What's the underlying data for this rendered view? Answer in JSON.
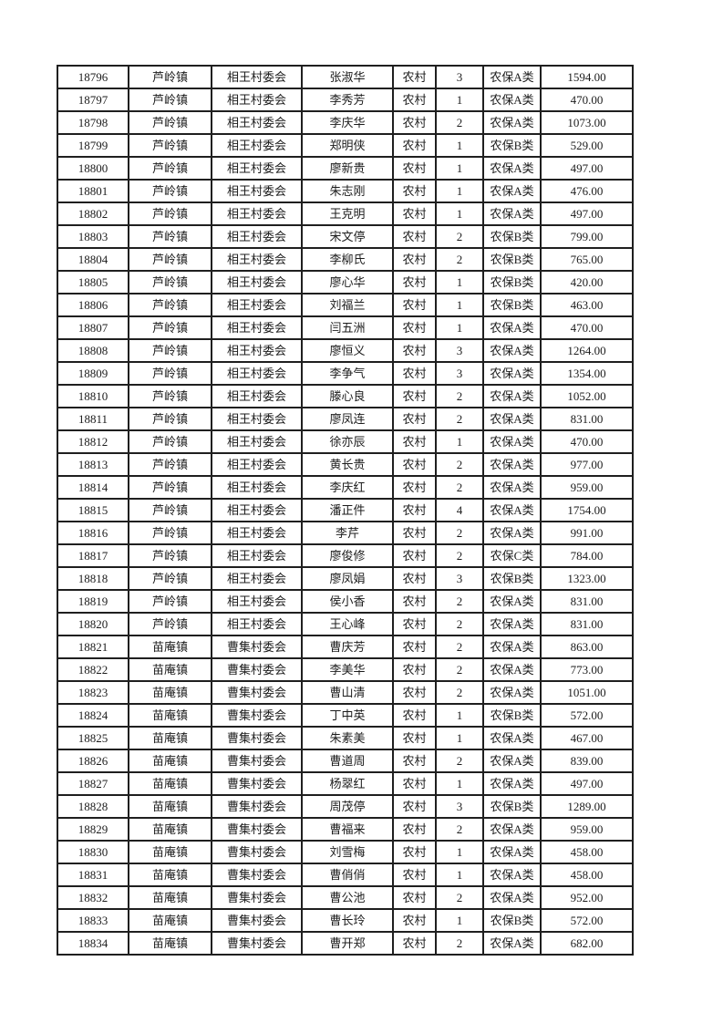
{
  "page": {
    "background_color": "#ffffff",
    "border_color": "#1f1f1f",
    "text_color": "#1c1c1c"
  },
  "table": {
    "rows": [
      [
        "18796",
        "芦岭镇",
        "相王村委会",
        "张淑华",
        "农村",
        "3",
        "农保A类",
        "1594.00"
      ],
      [
        "18797",
        "芦岭镇",
        "相王村委会",
        "李秀芳",
        "农村",
        "1",
        "农保A类",
        "470.00"
      ],
      [
        "18798",
        "芦岭镇",
        "相王村委会",
        "李庆华",
        "农村",
        "2",
        "农保A类",
        "1073.00"
      ],
      [
        "18799",
        "芦岭镇",
        "相王村委会",
        "郑明侠",
        "农村",
        "1",
        "农保B类",
        "529.00"
      ],
      [
        "18800",
        "芦岭镇",
        "相王村委会",
        "廖新贵",
        "农村",
        "1",
        "农保A类",
        "497.00"
      ],
      [
        "18801",
        "芦岭镇",
        "相王村委会",
        "朱志刚",
        "农村",
        "1",
        "农保A类",
        "476.00"
      ],
      [
        "18802",
        "芦岭镇",
        "相王村委会",
        "王克明",
        "农村",
        "1",
        "农保A类",
        "497.00"
      ],
      [
        "18803",
        "芦岭镇",
        "相王村委会",
        "宋文停",
        "农村",
        "2",
        "农保B类",
        "799.00"
      ],
      [
        "18804",
        "芦岭镇",
        "相王村委会",
        "李柳氏",
        "农村",
        "2",
        "农保B类",
        "765.00"
      ],
      [
        "18805",
        "芦岭镇",
        "相王村委会",
        "廖心华",
        "农村",
        "1",
        "农保B类",
        "420.00"
      ],
      [
        "18806",
        "芦岭镇",
        "相王村委会",
        "刘福兰",
        "农村",
        "1",
        "农保B类",
        "463.00"
      ],
      [
        "18807",
        "芦岭镇",
        "相王村委会",
        "闫五洲",
        "农村",
        "1",
        "农保A类",
        "470.00"
      ],
      [
        "18808",
        "芦岭镇",
        "相王村委会",
        "廖恒义",
        "农村",
        "3",
        "农保A类",
        "1264.00"
      ],
      [
        "18809",
        "芦岭镇",
        "相王村委会",
        "李争气",
        "农村",
        "3",
        "农保A类",
        "1354.00"
      ],
      [
        "18810",
        "芦岭镇",
        "相王村委会",
        "滕心良",
        "农村",
        "2",
        "农保A类",
        "1052.00"
      ],
      [
        "18811",
        "芦岭镇",
        "相王村委会",
        "廖凤连",
        "农村",
        "2",
        "农保A类",
        "831.00"
      ],
      [
        "18812",
        "芦岭镇",
        "相王村委会",
        "徐亦辰",
        "农村",
        "1",
        "农保A类",
        "470.00"
      ],
      [
        "18813",
        "芦岭镇",
        "相王村委会",
        "黄长贵",
        "农村",
        "2",
        "农保A类",
        "977.00"
      ],
      [
        "18814",
        "芦岭镇",
        "相王村委会",
        "李庆红",
        "农村",
        "2",
        "农保A类",
        "959.00"
      ],
      [
        "18815",
        "芦岭镇",
        "相王村委会",
        "潘正件",
        "农村",
        "4",
        "农保A类",
        "1754.00"
      ],
      [
        "18816",
        "芦岭镇",
        "相王村委会",
        "李芹",
        "农村",
        "2",
        "农保A类",
        "991.00"
      ],
      [
        "18817",
        "芦岭镇",
        "相王村委会",
        "廖俊修",
        "农村",
        "2",
        "农保C类",
        "784.00"
      ],
      [
        "18818",
        "芦岭镇",
        "相王村委会",
        "廖凤娟",
        "农村",
        "3",
        "农保B类",
        "1323.00"
      ],
      [
        "18819",
        "芦岭镇",
        "相王村委会",
        "侯小香",
        "农村",
        "2",
        "农保A类",
        "831.00"
      ],
      [
        "18820",
        "芦岭镇",
        "相王村委会",
        "王心峰",
        "农村",
        "2",
        "农保A类",
        "831.00"
      ],
      [
        "18821",
        "苗庵镇",
        "曹集村委会",
        "曹庆芳",
        "农村",
        "2",
        "农保A类",
        "863.00"
      ],
      [
        "18822",
        "苗庵镇",
        "曹集村委会",
        "李美华",
        "农村",
        "2",
        "农保A类",
        "773.00"
      ],
      [
        "18823",
        "苗庵镇",
        "曹集村委会",
        "曹山清",
        "农村",
        "2",
        "农保A类",
        "1051.00"
      ],
      [
        "18824",
        "苗庵镇",
        "曹集村委会",
        "丁中英",
        "农村",
        "1",
        "农保B类",
        "572.00"
      ],
      [
        "18825",
        "苗庵镇",
        "曹集村委会",
        "朱素美",
        "农村",
        "1",
        "农保A类",
        "467.00"
      ],
      [
        "18826",
        "苗庵镇",
        "曹集村委会",
        "曹道周",
        "农村",
        "2",
        "农保A类",
        "839.00"
      ],
      [
        "18827",
        "苗庵镇",
        "曹集村委会",
        "杨翠红",
        "农村",
        "1",
        "农保A类",
        "497.00"
      ],
      [
        "18828",
        "苗庵镇",
        "曹集村委会",
        "周茂停",
        "农村",
        "3",
        "农保B类",
        "1289.00"
      ],
      [
        "18829",
        "苗庵镇",
        "曹集村委会",
        "曹福来",
        "农村",
        "2",
        "农保A类",
        "959.00"
      ],
      [
        "18830",
        "苗庵镇",
        "曹集村委会",
        "刘雪梅",
        "农村",
        "1",
        "农保A类",
        "458.00"
      ],
      [
        "18831",
        "苗庵镇",
        "曹集村委会",
        "曹俏俏",
        "农村",
        "1",
        "农保A类",
        "458.00"
      ],
      [
        "18832",
        "苗庵镇",
        "曹集村委会",
        "曹公池",
        "农村",
        "2",
        "农保A类",
        "952.00"
      ],
      [
        "18833",
        "苗庵镇",
        "曹集村委会",
        "曹长玲",
        "农村",
        "1",
        "农保B类",
        "572.00"
      ],
      [
        "18834",
        "苗庵镇",
        "曹集村委会",
        "曹开郑",
        "农村",
        "2",
        "农保A类",
        "682.00"
      ]
    ]
  }
}
